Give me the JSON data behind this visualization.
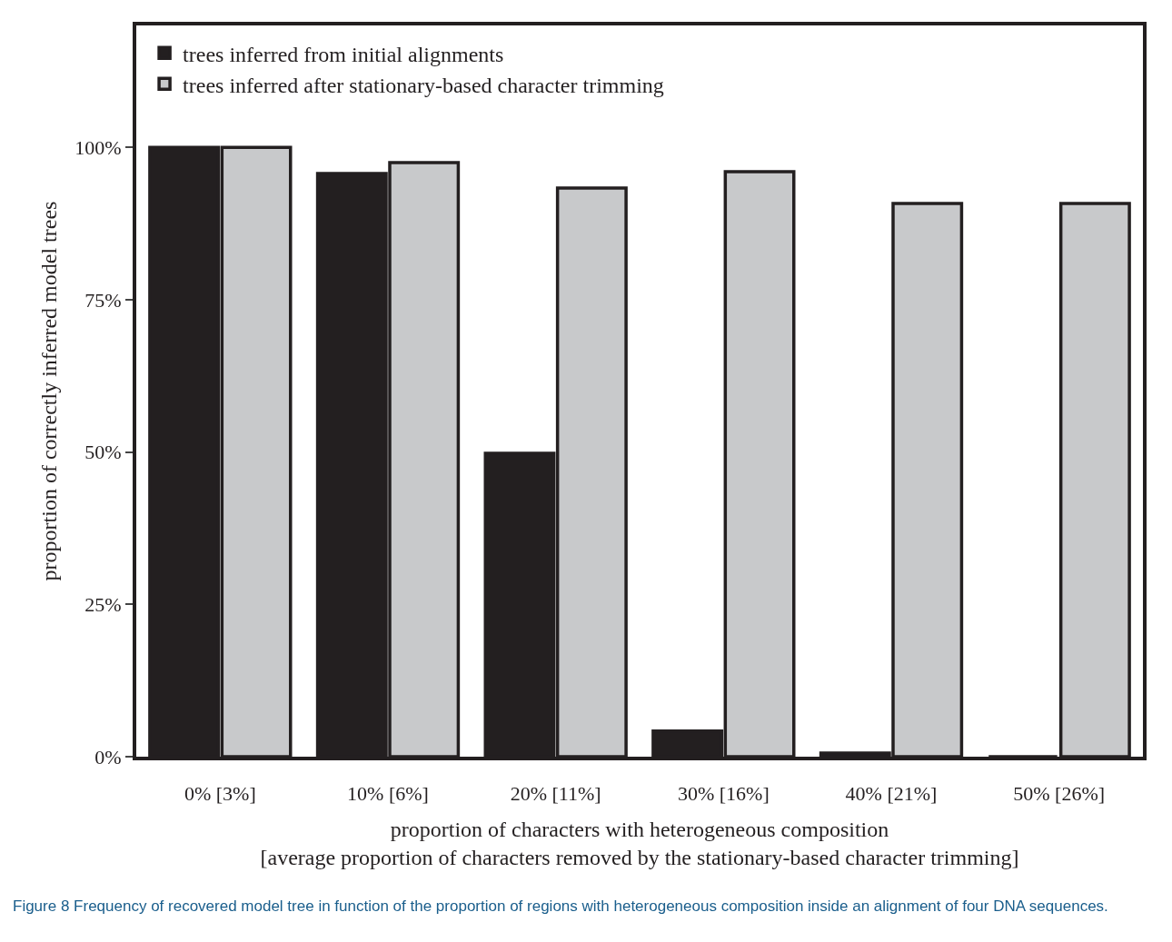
{
  "chart_data": {
    "type": "bar",
    "xlabel": "proportion of characters with heterogeneous composition\n[average proportion of characters removed by the stationary-based character trimming]",
    "ylabel": "proportion of correctly inferred model trees",
    "categories": [
      "0% [3%]",
      "10% [6%]",
      "20% [11%]",
      "30% [16%]",
      "40% [21%]",
      "50% [26%]"
    ],
    "series": [
      {
        "name": "trees inferred from initial alignments",
        "color": "#231f20",
        "values": [
          100,
          95.7,
          49.8,
          4.2,
          0.6,
          0
        ]
      },
      {
        "name": "trees inferred after stationary-based character trimming",
        "color": "#c8c9cb",
        "values": [
          100,
          97.5,
          93.3,
          96,
          90.8,
          90.8
        ]
      }
    ],
    "ylim": [
      0,
      120
    ],
    "yticks": [
      {
        "value": 0,
        "label": "0%"
      },
      {
        "value": 25,
        "label": "25%"
      },
      {
        "value": 50,
        "label": "50%"
      },
      {
        "value": 75,
        "label": "75%"
      },
      {
        "value": 100,
        "label": "100%"
      }
    ],
    "grid": false,
    "legend": "top left",
    "annotations": [
      "Figure 8 Frequency of recovered model tree in function of the proportion of regions with heterogeneous composition inside an alignment of four DNA sequences."
    ]
  }
}
